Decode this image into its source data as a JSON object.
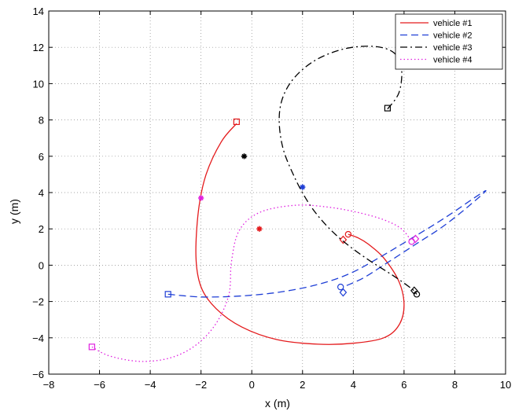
{
  "chart_data": {
    "type": "line",
    "title": "",
    "xlabel": "x (m)",
    "ylabel": "y (m)",
    "xlim": [
      -8,
      10
    ],
    "ylim": [
      -6,
      14
    ],
    "x_ticks": [
      -8,
      -6,
      -4,
      -2,
      0,
      2,
      4,
      6,
      8,
      10
    ],
    "y_ticks": [
      -6,
      -4,
      -2,
      0,
      2,
      4,
      6,
      8,
      10,
      12,
      14
    ],
    "x_tick_labels": [
      "−8",
      "−6",
      "−4",
      "−2",
      "0",
      "2",
      "4",
      "6",
      "8",
      "10"
    ],
    "y_tick_labels": [
      "−6",
      "−4",
      "−2",
      "0",
      "2",
      "4",
      "6",
      "8",
      "10",
      "12",
      "14"
    ],
    "grid": true,
    "legend_position": "top-right",
    "series": [
      {
        "name": "vehicle #1",
        "color": "#e41a1c",
        "dash": "solid",
        "points": [
          [
            -0.6,
            7.8
          ],
          [
            -1.2,
            6.8
          ],
          [
            -1.8,
            5.0
          ],
          [
            -2.1,
            3.0
          ],
          [
            -2.2,
            0.5
          ],
          [
            -2.0,
            -1.2
          ],
          [
            -1.4,
            -2.4
          ],
          [
            -0.4,
            -3.4
          ],
          [
            1.0,
            -4.1
          ],
          [
            2.6,
            -4.35
          ],
          [
            4.0,
            -4.3
          ],
          [
            5.2,
            -4.0
          ],
          [
            5.8,
            -3.3
          ],
          [
            6.0,
            -2.2
          ],
          [
            5.8,
            -0.9
          ],
          [
            5.2,
            0.4
          ],
          [
            4.6,
            1.15
          ],
          [
            4.2,
            1.5
          ],
          [
            3.8,
            1.7
          ]
        ],
        "start": [
          -0.6,
          7.9
        ],
        "end": [
          3.8,
          1.7
        ],
        "end_alt": [
          3.6,
          1.4
        ],
        "target": [
          0.3,
          2.0
        ]
      },
      {
        "name": "vehicle #2",
        "color": "#1f3fd6",
        "dash": "dashed",
        "points": [
          [
            -3.3,
            -1.6
          ],
          [
            -2.0,
            -1.75
          ],
          [
            -0.5,
            -1.7
          ],
          [
            1.0,
            -1.5
          ],
          [
            2.5,
            -1.1
          ],
          [
            3.8,
            -0.5
          ],
          [
            5.0,
            0.4
          ],
          [
            6.2,
            1.4
          ],
          [
            7.6,
            2.6
          ],
          [
            9.2,
            4.1
          ],
          [
            8.5,
            3.2
          ],
          [
            7.5,
            2.1
          ],
          [
            6.4,
            1.1
          ],
          [
            5.3,
            0.1
          ],
          [
            4.4,
            -0.7
          ],
          [
            3.6,
            -1.2
          ]
        ],
        "start": [
          -3.3,
          -1.6
        ],
        "end": [
          3.5,
          -1.2
        ],
        "end_alt": [
          3.6,
          -1.5
        ],
        "target": [
          2.0,
          4.3
        ]
      },
      {
        "name": "vehicle #3",
        "color": "#000000",
        "dash": "dashdot",
        "points": [
          [
            5.35,
            8.6
          ],
          [
            5.8,
            9.5
          ],
          [
            5.9,
            10.8
          ],
          [
            5.6,
            11.7
          ],
          [
            4.8,
            12.05
          ],
          [
            3.6,
            11.9
          ],
          [
            2.4,
            11.2
          ],
          [
            1.5,
            10.0
          ],
          [
            1.1,
            8.5
          ],
          [
            1.2,
            6.6
          ],
          [
            1.7,
            4.8
          ],
          [
            2.3,
            3.3
          ],
          [
            3.0,
            2.1
          ],
          [
            3.8,
            1.1
          ],
          [
            4.7,
            0.2
          ],
          [
            5.6,
            -0.6
          ],
          [
            6.3,
            -1.3
          ],
          [
            6.5,
            -1.6
          ]
        ],
        "start": [
          5.35,
          8.65
        ],
        "end": [
          6.5,
          -1.6
        ],
        "end_alt": [
          6.4,
          -1.4
        ],
        "target": [
          -0.3,
          6.0
        ]
      },
      {
        "name": "vehicle #4",
        "color": "#e020e0",
        "dash": "dotted",
        "points": [
          [
            -6.3,
            -4.5
          ],
          [
            -5.6,
            -5.0
          ],
          [
            -4.4,
            -5.3
          ],
          [
            -3.2,
            -5.1
          ],
          [
            -2.2,
            -4.4
          ],
          [
            -1.4,
            -3.2
          ],
          [
            -0.9,
            -1.6
          ],
          [
            -0.8,
            0.2
          ],
          [
            -0.5,
            1.9
          ],
          [
            0.3,
            2.9
          ],
          [
            1.7,
            3.3
          ],
          [
            3.0,
            3.2
          ],
          [
            4.2,
            2.9
          ],
          [
            5.2,
            2.5
          ],
          [
            5.9,
            2.0
          ],
          [
            6.3,
            1.3
          ]
        ],
        "start": [
          -6.3,
          -4.5
        ],
        "end": [
          6.3,
          1.3
        ],
        "end_alt": [
          6.45,
          1.45
        ],
        "target": [
          -2.0,
          3.7
        ]
      }
    ]
  }
}
